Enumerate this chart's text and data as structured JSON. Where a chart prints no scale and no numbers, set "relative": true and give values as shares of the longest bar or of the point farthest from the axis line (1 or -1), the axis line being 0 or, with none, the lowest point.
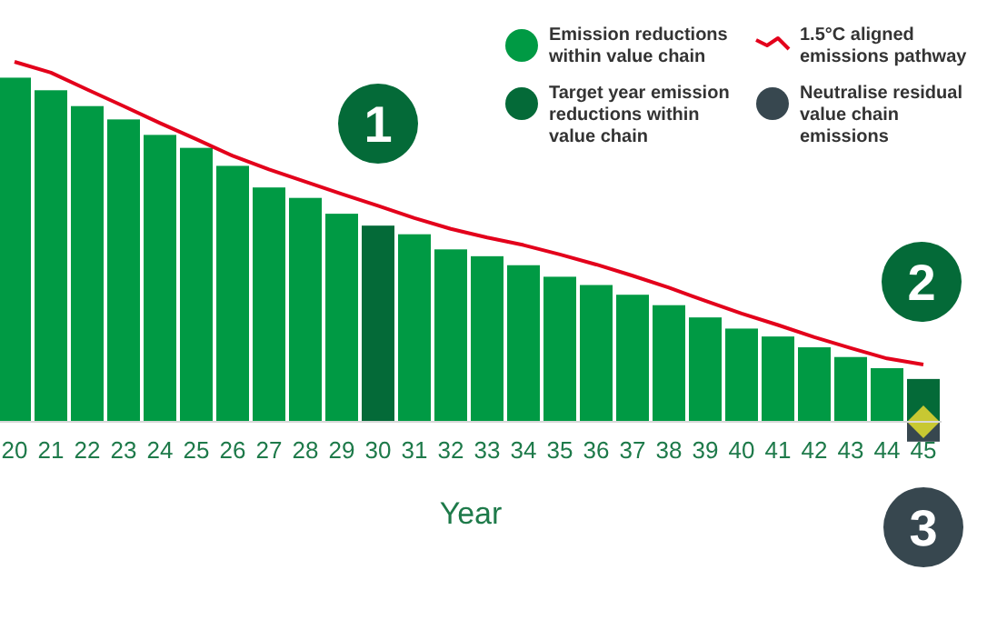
{
  "chart_data": {
    "type": "bar",
    "relative": true,
    "xlabel": "Year",
    "legend": "top right",
    "categories": [
      "20",
      "21",
      "22",
      "23",
      "24",
      "25",
      "26",
      "27",
      "28",
      "29",
      "30",
      "31",
      "32",
      "33",
      "34",
      "35",
      "36",
      "37",
      "38",
      "39",
      "40",
      "41",
      "42",
      "43",
      "44",
      "45"
    ],
    "series": [
      {
        "name": "Emission reductions within value chain",
        "color": "#009a44",
        "values": [
          0.956,
          0.921,
          0.877,
          0.84,
          0.797,
          0.761,
          0.711,
          0.651,
          0.622,
          0.578,
          null,
          0.521,
          0.479,
          0.46,
          0.435,
          0.403,
          0.38,
          0.353,
          0.324,
          0.29,
          0.259,
          0.237,
          0.207,
          0.18,
          0.149,
          null
        ]
      },
      {
        "name": "Target year emission reductions within value chain",
        "color": "#046a38",
        "values": [
          null,
          null,
          null,
          null,
          null,
          null,
          null,
          null,
          null,
          null,
          0.545,
          null,
          null,
          null,
          null,
          null,
          null,
          null,
          null,
          null,
          null,
          null,
          null,
          null,
          null,
          0.119
        ]
      },
      {
        "name": "Neutralise residual value chain emissions",
        "color": "#37474f",
        "values": [
          null,
          null,
          null,
          null,
          null,
          null,
          null,
          null,
          null,
          null,
          null,
          null,
          null,
          null,
          null,
          null,
          null,
          null,
          null,
          null,
          null,
          null,
          null,
          null,
          null,
          -0.055
        ]
      },
      {
        "name": "1.5°C aligned emissions pathway",
        "type": "line",
        "color": "#e3001b",
        "values": [
          1,
          0.97,
          0.923,
          0.877,
          0.83,
          0.785,
          0.739,
          0.701,
          0.667,
          0.633,
          0.6,
          0.566,
          0.536,
          0.512,
          0.491,
          0.465,
          0.437,
          0.406,
          0.373,
          0.336,
          0.301,
          0.269,
          0.235,
          0.205,
          0.176,
          0.159
        ]
      }
    ],
    "annotations": [
      "1",
      "2",
      "3"
    ]
  }
}
